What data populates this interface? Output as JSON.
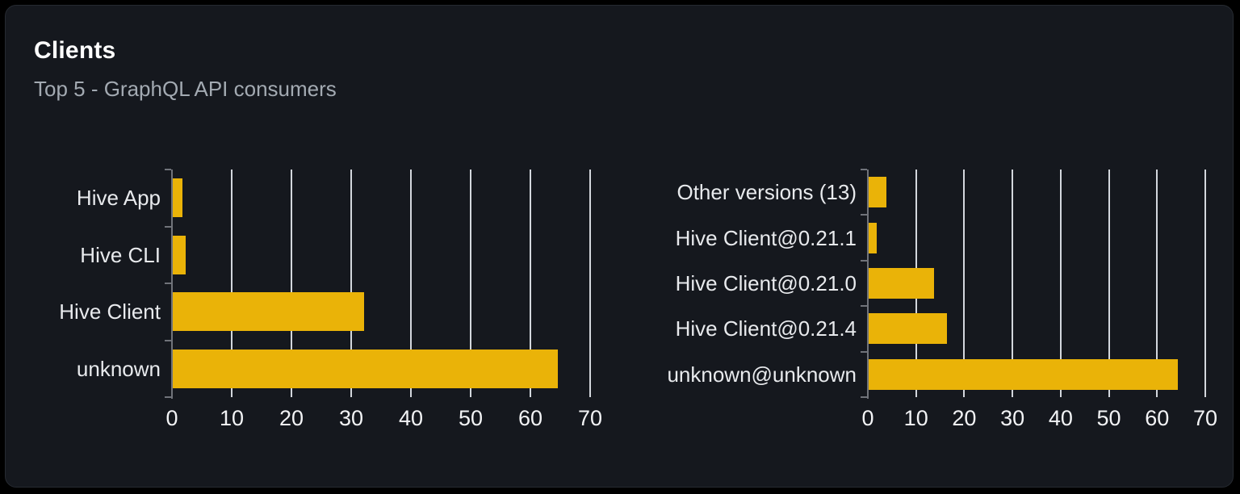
{
  "header": {
    "title": "Clients",
    "subtitle": "Top 5 - GraphQL API consumers"
  },
  "colors": {
    "page_bg": "#000000",
    "card_bg": "#15181e",
    "card_border": "#262a31",
    "bar": "#eab308",
    "gridline": "#d3d7dd",
    "axis": "#70737a",
    "title_text": "#ffffff",
    "subtitle_text": "#a3aab2",
    "category_label_text": "#e8eaed",
    "tick_label_text": "#f2f3f5"
  },
  "chart_data": [
    {
      "type": "bar",
      "orientation": "horizontal",
      "title": "",
      "categories": [
        "Hive App",
        "Hive CLI",
        "Hive Client",
        "unknown"
      ],
      "values": [
        1.6,
        2.2,
        32,
        64.4
      ],
      "xlim": [
        0,
        70
      ],
      "xticks": [
        0,
        10,
        20,
        30,
        40,
        50,
        60,
        70
      ],
      "grid": true,
      "legend": "none",
      "bar_color": "#eab308"
    },
    {
      "type": "bar",
      "orientation": "horizontal",
      "title": "",
      "categories": [
        "Other versions (13)",
        "Hive Client@0.21.1",
        "Hive Client@0.21.0",
        "Hive Client@0.21.4",
        "unknown@unknown"
      ],
      "values": [
        3.7,
        1.7,
        13.6,
        16.3,
        64.2
      ],
      "xlim": [
        0,
        70
      ],
      "xticks": [
        0,
        10,
        20,
        30,
        40,
        50,
        60,
        70
      ],
      "grid": true,
      "legend": "none",
      "bar_color": "#eab308"
    }
  ]
}
